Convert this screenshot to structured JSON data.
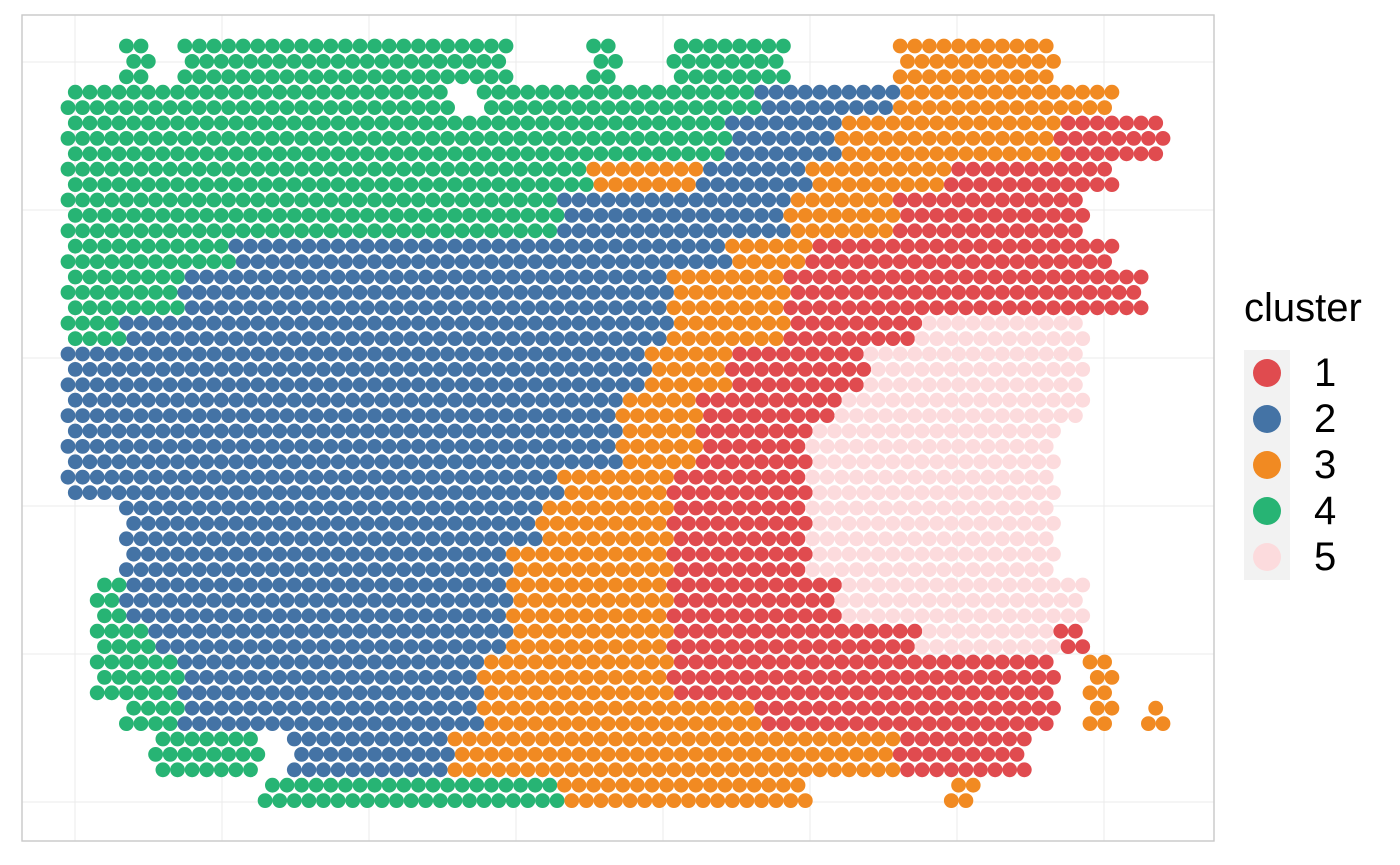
{
  "chart_data": {
    "type": "scatter",
    "title": "",
    "xlabel": "",
    "ylabel": "",
    "grid": true,
    "legend_position": "right",
    "legend": {
      "title": "cluster",
      "entries": [
        {
          "label": "1",
          "color": "#e04b4f"
        },
        {
          "label": "2",
          "color": "#4473a5"
        },
        {
          "label": "3",
          "color": "#f18a22"
        },
        {
          "label": "4",
          "color": "#27b474"
        },
        {
          "label": "5",
          "color": "#fcdbdd"
        }
      ]
    },
    "description_spots": {
      "region_sketch_cluster_map_rows": [
        "..4.444444444444...4..4444....333333....",
        "44444444444444.44444444442222233333333..",
        "4444444444444444444444442222333333331111",
        "44444444444444444443333222233333111111..",
        "4444444444444444442222222233331111111...",
        "44444422222222222222222233311111111111..",
        "444422222222222222222233331111111111111.",
        "4422222222222222222222333311111555555...",
        "2222222222222222222223331111155555555...",
        "2222222222222222222233311111555555555...",
        "222222222222222222223331111555555555....",
        "222222222222222222333311111555555555....",
        "..2222222222222223333311111555555555....",
        "..2222222222222233333311111555555555....",
        ".422222222222222333333111111555555555...",
        ".442222222222222333333111111111555551...",
        ".44422222222222333333311111111111111.3..",
        "..4422222222222333333333311111111111.3.3",
        "...4444.222222333333333333333311111.....",
        ".......44444444444333333333.....3......."
      ],
      "grid_rows": 20,
      "grid_cols": 40
    }
  }
}
